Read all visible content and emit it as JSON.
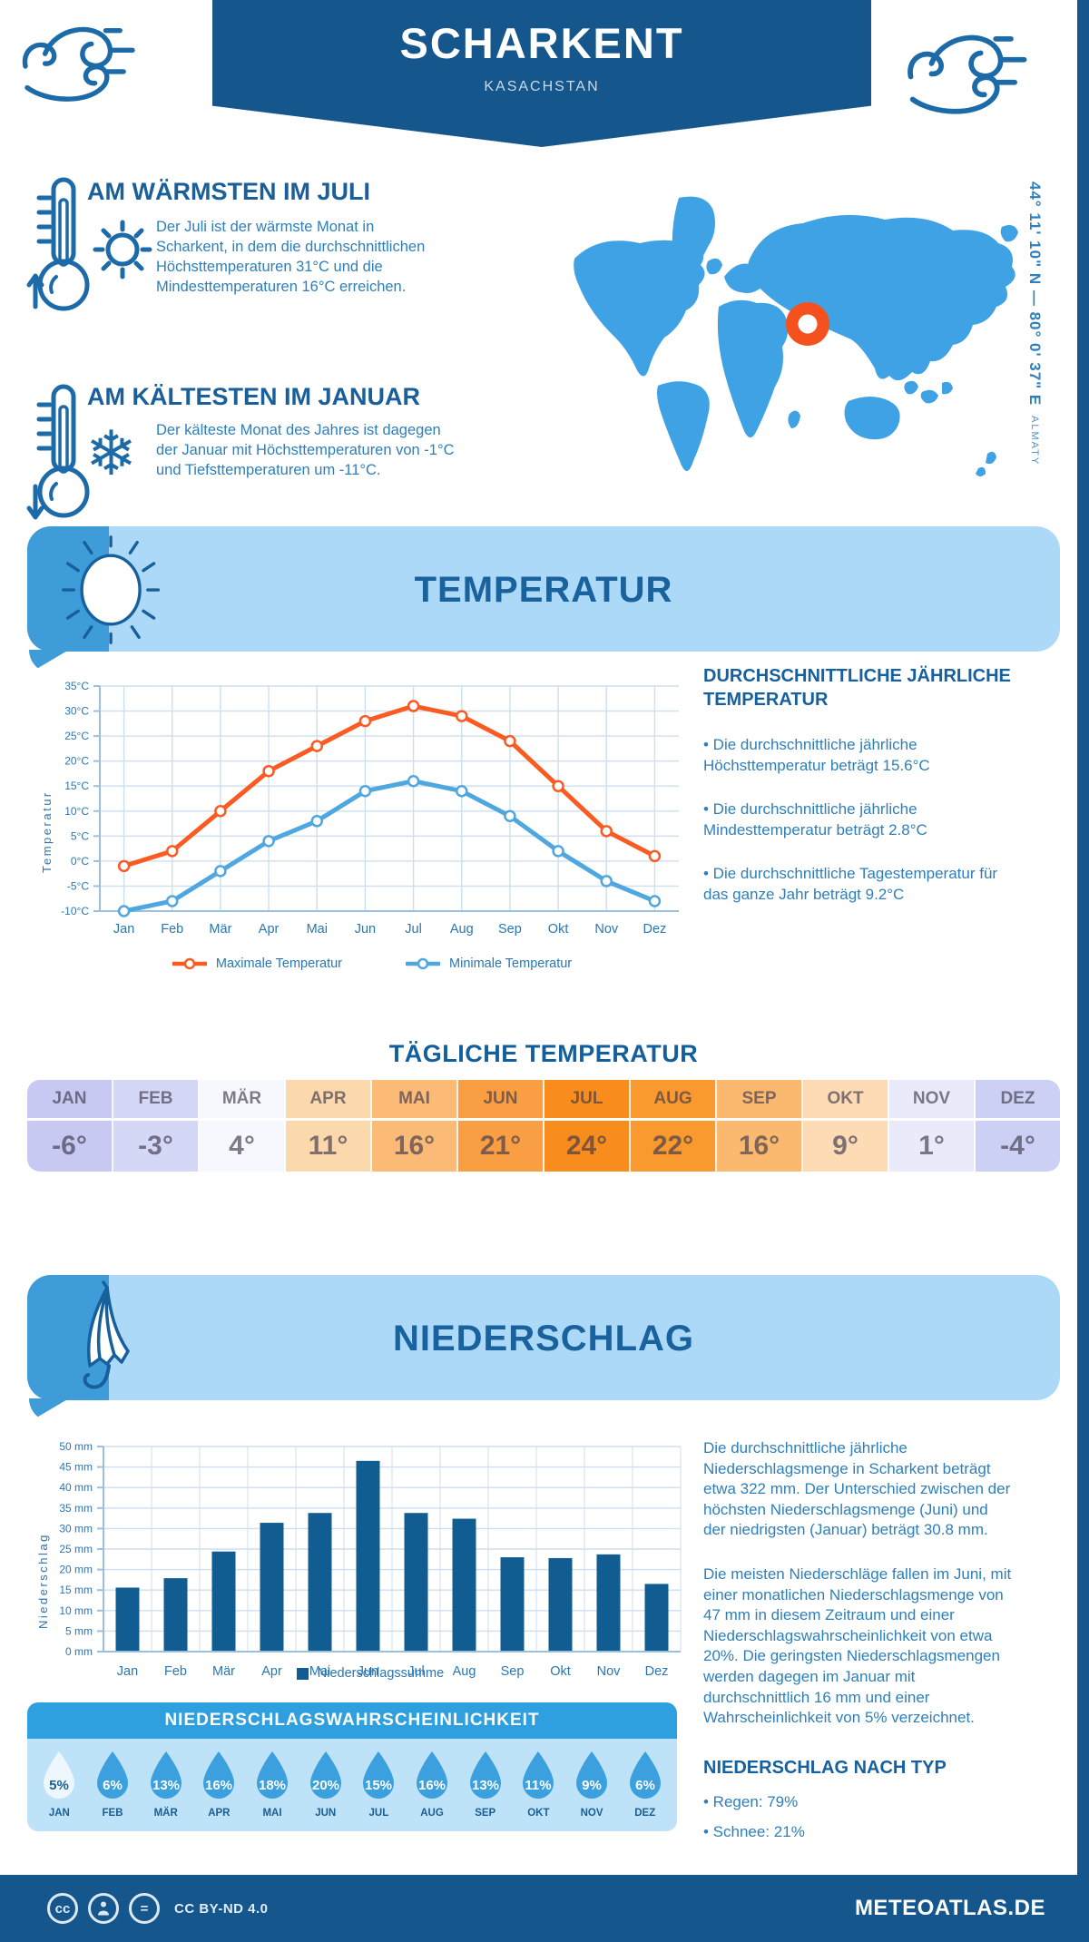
{
  "header": {
    "title": "SCHARKENT",
    "subtitle": "KASACHSTAN"
  },
  "highlights": [
    {
      "title": "AM WÄRMSTEN IM JULI",
      "text": "Der Juli ist der wärmste Monat in Scharkent, in dem die durchschnittlichen Höchsttemperaturen 31°C und die Mindesttemperaturen 16°C erreichen."
    },
    {
      "title": "AM KÄLTESTEN IM JANUAR",
      "text": "Der kälteste Monat des Jahres ist dagegen der Januar mit Höchsttemperaturen von -1°C und Tiefsttemperaturen um -11°C."
    }
  ],
  "map": {
    "coordinates": "44° 11' 10\" N — 80° 0' 37\" E",
    "region": "ALMATY",
    "map_color": "#3FA2E4",
    "marker_color": "#F4511E"
  },
  "temperature_section": {
    "banner_title": "TEMPERATUR",
    "chart_data": {
      "type": "line",
      "title": "",
      "ylabel": "Temperatur",
      "unit": "°C",
      "ylim": [
        -10,
        35
      ],
      "ystep": 5,
      "grid": true,
      "legend_position": "bottom",
      "categories": [
        "Jan",
        "Feb",
        "Mär",
        "Apr",
        "Mai",
        "Jun",
        "Jul",
        "Aug",
        "Sep",
        "Okt",
        "Nov",
        "Dez"
      ],
      "series": [
        {
          "name": "Maximale Temperatur",
          "color": "#F95B22",
          "values": [
            -1,
            2,
            10,
            18,
            23,
            28,
            31,
            29,
            24,
            15,
            6,
            1
          ]
        },
        {
          "name": "Minimale Temperatur",
          "color": "#4FA7DF",
          "values": [
            -10,
            -8,
            -2,
            4,
            8,
            14,
            16,
            14,
            9,
            2,
            -4,
            -8
          ]
        }
      ]
    },
    "annual": {
      "title": "DURCHSCHNITTLICHE JÄHRLICHE TEMPERATUR",
      "bullets": [
        "• Die durchschnittliche jährliche Höchsttemperatur beträgt 15.6°C",
        "• Die durchschnittliche jährliche Mindesttemperatur beträgt 2.8°C",
        "• Die durchschnittliche Tagestemperatur für das ganze Jahr beträgt 9.2°C"
      ]
    },
    "daily": {
      "title": "TÄGLICHE TEMPERATUR",
      "months": [
        {
          "label": "JAN",
          "value": "-6°",
          "bg": "#c7c9f3"
        },
        {
          "label": "FEB",
          "value": "-3°",
          "bg": "#d5d7f7"
        },
        {
          "label": "MÄR",
          "value": "4°",
          "bg": "#f7f8fd"
        },
        {
          "label": "APR",
          "value": "11°",
          "bg": "#fcd8ad"
        },
        {
          "label": "MAI",
          "value": "16°",
          "bg": "#fbba75"
        },
        {
          "label": "JUN",
          "value": "21°",
          "bg": "#f99e43"
        },
        {
          "label": "JUL",
          "value": "24°",
          "bg": "#f88c1c"
        },
        {
          "label": "AUG",
          "value": "22°",
          "bg": "#f9992e"
        },
        {
          "label": "SEP",
          "value": "16°",
          "bg": "#fbb96f"
        },
        {
          "label": "OKT",
          "value": "9°",
          "bg": "#fcdbb5"
        },
        {
          "label": "NOV",
          "value": "1°",
          "bg": "#e9ebfa"
        },
        {
          "label": "DEZ",
          "value": "-4°",
          "bg": "#cdd0f5"
        }
      ]
    }
  },
  "precipitation_section": {
    "banner_title": "NIEDERSCHLAG",
    "chart_data": {
      "type": "bar",
      "title": "",
      "ylabel": "Niederschlag",
      "unit": "mm",
      "ylim": [
        0,
        50
      ],
      "ystep": 5,
      "grid": true,
      "color": "#115D92",
      "categories": [
        "Jan",
        "Feb",
        "Mär",
        "Apr",
        "Mai",
        "Jun",
        "Jul",
        "Aug",
        "Sep",
        "Okt",
        "Nov",
        "Dez"
      ],
      "values": [
        15.6,
        17.9,
        24.4,
        31.4,
        33.8,
        46.5,
        33.8,
        32.4,
        23.0,
        22.8,
        23.7,
        16.5
      ]
    },
    "legend": "Niederschlagssumme",
    "text1": "Die durchschnittliche jährliche Niederschlagsmenge in Scharkent beträgt etwa 322 mm. Der Unterschied zwischen der höchsten Niederschlagsmenge (Juni) und der niedrigsten (Januar) beträgt 30.8 mm.",
    "text2": "Die meisten Niederschläge fallen im Juni, mit einer monatlichen Niederschlagsmenge von 47 mm in diesem Zeitraum und einer Niederschlagswahrscheinlichkeit von etwa 20%. Die geringsten Niederschlagsmengen werden dagegen im Januar mit durchschnittlich 16 mm und einer Wahrscheinlichkeit von 5% verzeichnet.",
    "by_type": {
      "title": "NIEDERSCHLAG NACH TYP",
      "bullets": [
        "• Regen: 79%",
        "• Schnee: 21%"
      ]
    },
    "probability": {
      "title": "NIEDERSCHLAGSWAHRSCHEINLICHKEIT",
      "months": [
        {
          "label": "JAN",
          "value": "5%",
          "drop": "#eef7fd",
          "text": "#1b5f92"
        },
        {
          "label": "FEB",
          "value": "6%",
          "drop": "#3ca0de",
          "text": "#ffffff"
        },
        {
          "label": "MÄR",
          "value": "13%",
          "drop": "#3ca0de",
          "text": "#ffffff"
        },
        {
          "label": "APR",
          "value": "16%",
          "drop": "#3ca0de",
          "text": "#ffffff"
        },
        {
          "label": "MAI",
          "value": "18%",
          "drop": "#3ca0de",
          "text": "#ffffff"
        },
        {
          "label": "JUN",
          "value": "20%",
          "drop": "#3ca0de",
          "text": "#ffffff"
        },
        {
          "label": "JUL",
          "value": "15%",
          "drop": "#3ca0de",
          "text": "#ffffff"
        },
        {
          "label": "AUG",
          "value": "16%",
          "drop": "#3ca0de",
          "text": "#ffffff"
        },
        {
          "label": "SEP",
          "value": "13%",
          "drop": "#3ca0de",
          "text": "#ffffff"
        },
        {
          "label": "OKT",
          "value": "11%",
          "drop": "#3ca0de",
          "text": "#ffffff"
        },
        {
          "label": "NOV",
          "value": "9%",
          "drop": "#3ca0de",
          "text": "#ffffff"
        },
        {
          "label": "DEZ",
          "value": "6%",
          "drop": "#3ca0de",
          "text": "#ffffff"
        }
      ]
    }
  },
  "footer": {
    "license": "CC BY-ND 4.0",
    "site": "METEOATLAS.DE"
  }
}
